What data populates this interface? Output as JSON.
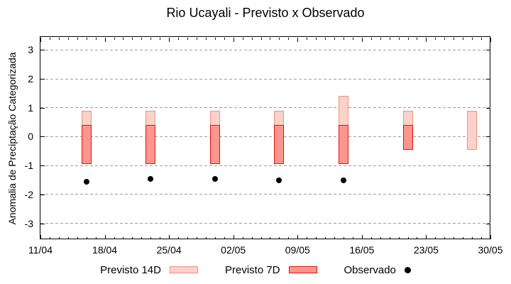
{
  "title": "Rio Ucayali - Previsto x Observado",
  "colors": {
    "previsto14_fill": "#fbd2cb",
    "previsto14_border": "#f0907f",
    "previsto7_fill": "#fa968c",
    "previsto7_border": "#e41310",
    "observado": "#000000",
    "grid": "#9e9e9e",
    "axis": "#000000",
    "background": "#ffffff"
  },
  "legend": {
    "items": [
      {
        "label": "Previsto 14D",
        "swatch": "pink-box"
      },
      {
        "label": "Previsto 7D",
        "swatch": "red-box"
      },
      {
        "label": "Observado",
        "swatch": "black-dot"
      }
    ]
  },
  "chart_data": {
    "type": "bar",
    "subtype": "floating-range-bars-with-scatter-overlay",
    "title": "Rio Ucayali - Previsto x Observado",
    "xlabel": "",
    "ylabel": "Anomalia de Preciptação Categorizada",
    "x_axis_start": "11/04",
    "x_axis_end": "30/05",
    "x_tick_labels": [
      "11/04",
      "18/04",
      "25/04",
      "02/05",
      "09/05",
      "16/05",
      "23/05",
      "30/05"
    ],
    "x_minor_tick_interval_days": 1,
    "y_ticks": [
      -3,
      -2,
      -1,
      0,
      1,
      2,
      3
    ],
    "ylim": [
      -3.5,
      3.5
    ],
    "grid": "horizontal dashed lines at each y tick",
    "legend_position": "below chart, centered",
    "categories": [
      "16/04",
      "23/04",
      "30/04",
      "07/05",
      "14/05",
      "21/05",
      "28/05"
    ],
    "series": [
      {
        "name": "Previsto 14D",
        "type": "range-bar",
        "ranges": [
          [
            -0.95,
            0.9
          ],
          [
            -0.95,
            0.9
          ],
          [
            -0.95,
            0.9
          ],
          [
            -0.95,
            0.9
          ],
          [
            -0.95,
            1.4
          ],
          [
            -0.45,
            0.9
          ],
          [
            -0.45,
            0.9
          ]
        ]
      },
      {
        "name": "Previsto 7D",
        "type": "range-bar",
        "ranges": [
          [
            -0.95,
            0.4
          ],
          [
            -0.95,
            0.4
          ],
          [
            -0.95,
            0.4
          ],
          [
            -0.95,
            0.4
          ],
          [
            -0.95,
            0.4
          ],
          [
            -0.45,
            0.4
          ],
          null
        ]
      },
      {
        "name": "Observado",
        "type": "scatter",
        "values": [
          -1.55,
          -1.45,
          -1.45,
          -1.5,
          -1.5,
          null,
          null
        ]
      }
    ]
  }
}
